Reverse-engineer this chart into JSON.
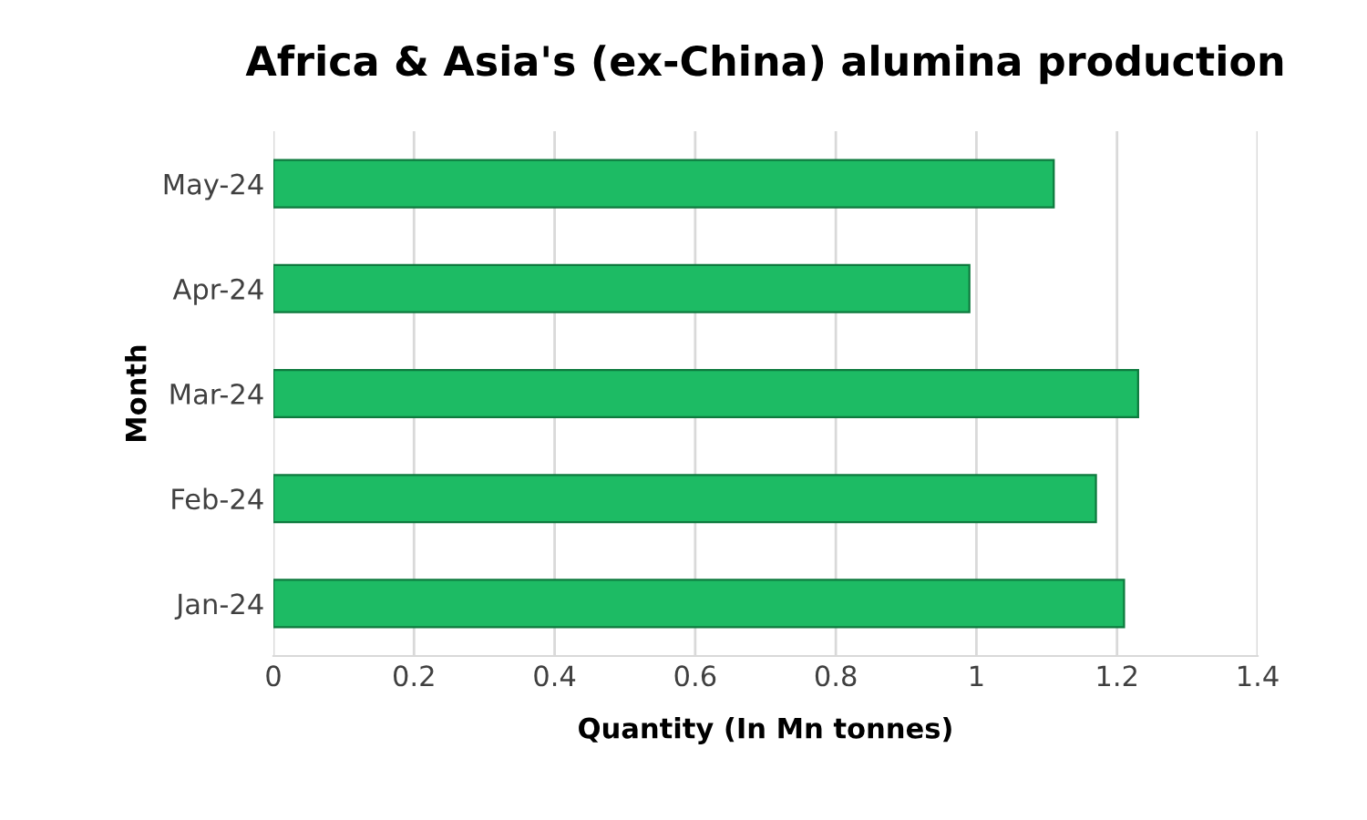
{
  "chart_data": {
    "type": "bar",
    "orientation": "horizontal",
    "title": "Africa & Asia's (ex-China) alumina production",
    "xlabel": "Quantity (In Mn tonnes)",
    "ylabel": "Month",
    "categories": [
      "May-24",
      "Apr-24",
      "Mar-24",
      "Feb-24",
      "Jan-24"
    ],
    "values": [
      1.11,
      0.99,
      1.23,
      1.17,
      1.21
    ],
    "color": "#1dbb64",
    "xlim": [
      0,
      1.4
    ],
    "xticks": [
      0,
      0.2,
      0.4,
      0.6,
      0.8,
      1,
      1.2,
      1.4
    ],
    "grid": "x"
  }
}
